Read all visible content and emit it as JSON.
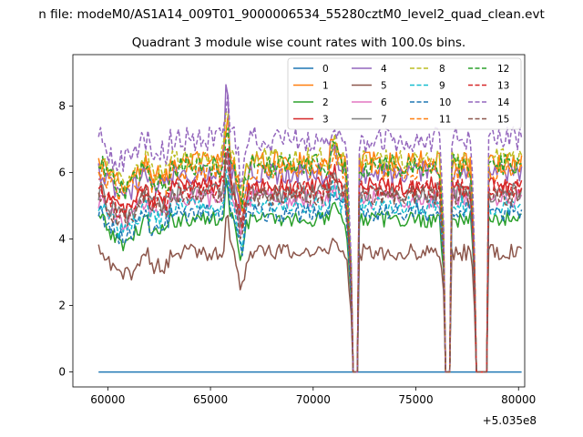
{
  "chart_data": {
    "type": "line",
    "suptitle": "n file: modeM0/AS1A14_009T01_9000006534_55280cztM0_level2_quad_clean.evt",
    "title": "Quadrant 3 module wise count rates with 100.0s bins.",
    "xlabel": "",
    "ylabel": "",
    "x_offset_label": "+5.035e8",
    "xlim": [
      58300,
      80300
    ],
    "ylim": [
      -0.45,
      9.55
    ],
    "xticks": [
      60000,
      65000,
      70000,
      75000,
      80000
    ],
    "xtick_labels": [
      "60000",
      "65000",
      "70000",
      "75000",
      "80000"
    ],
    "yticks": [
      0,
      2,
      4,
      6,
      8
    ],
    "ytick_labels": [
      "0",
      "2",
      "4",
      "6",
      "8"
    ],
    "bin_seconds": 100.0,
    "x_start": 59550,
    "x_end": 80150,
    "gaps": [
      [
        71900,
        72150
      ],
      [
        76450,
        76650
      ],
      [
        77900,
        78450
      ]
    ],
    "legend_position": "top-right",
    "series": [
      {
        "name": "0",
        "color": "#1f77b4",
        "dash": "solid",
        "level": 0.0,
        "noise": 0.0
      },
      {
        "name": "1",
        "color": "#ff7f0e",
        "dash": "solid",
        "level": 6.3,
        "noise": 0.35
      },
      {
        "name": "2",
        "color": "#2ca02c",
        "dash": "solid",
        "level": 4.6,
        "noise": 0.25
      },
      {
        "name": "3",
        "color": "#d62728",
        "dash": "solid",
        "level": 5.6,
        "noise": 0.3
      },
      {
        "name": "4",
        "color": "#9467bd",
        "dash": "solid",
        "level": 6.0,
        "noise": 0.35
      },
      {
        "name": "5",
        "color": "#8c564b",
        "dash": "solid",
        "level": 3.6,
        "noise": 0.25
      },
      {
        "name": "6",
        "color": "#e377c2",
        "dash": "solid",
        "level": 5.2,
        "noise": 0.3
      },
      {
        "name": "7",
        "color": "#7f7f7f",
        "dash": "solid",
        "level": 5.4,
        "noise": 0.3
      },
      {
        "name": "8",
        "color": "#bcbd22",
        "dash": "dashed",
        "level": 6.4,
        "noise": 0.35
      },
      {
        "name": "9",
        "color": "#17becf",
        "dash": "dashed",
        "level": 5.0,
        "noise": 0.3
      },
      {
        "name": "10",
        "color": "#1f77b4",
        "dash": "dashed",
        "level": 4.8,
        "noise": 0.3
      },
      {
        "name": "11",
        "color": "#ff7f0e",
        "dash": "dashed",
        "level": 6.1,
        "noise": 0.35
      },
      {
        "name": "12",
        "color": "#2ca02c",
        "dash": "dashed",
        "level": 6.2,
        "noise": 0.35
      },
      {
        "name": "13",
        "color": "#d62728",
        "dash": "dashed",
        "level": 5.5,
        "noise": 0.3
      },
      {
        "name": "14",
        "color": "#9467bd",
        "dash": "dashed",
        "level": 7.0,
        "noise": 0.4
      },
      {
        "name": "15",
        "color": "#8c564b",
        "dash": "dashed",
        "level": 5.3,
        "noise": 0.3
      }
    ]
  }
}
